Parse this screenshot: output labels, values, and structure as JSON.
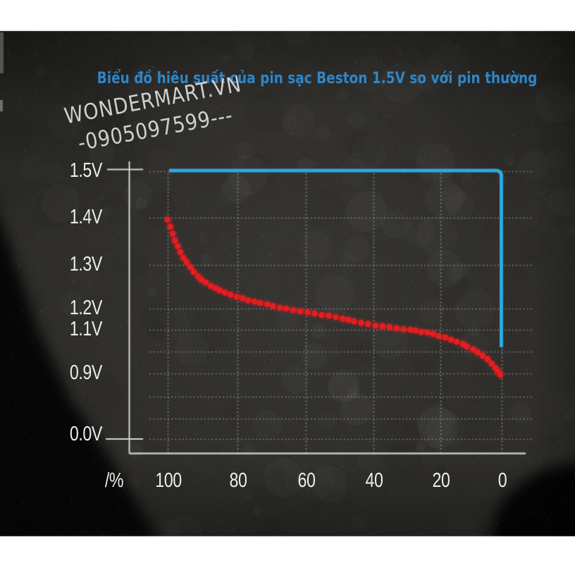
{
  "title": {
    "text": "Biểu đồ hiêu suất của pin sạc Beston 1.5V so với pin thường",
    "color": "#2e86c8"
  },
  "watermark": {
    "line1": "WONDERMART.VN",
    "line2": "-0905097599---",
    "color": "#dcdcdc"
  },
  "chart_data": {
    "type": "line",
    "title": "Biểu đồ hiêu suất của pin sạc Beston 1.5V so với pin thường",
    "background": "dark-textured-card",
    "grid": true,
    "x_axis": {
      "label": "/%",
      "ticks": [
        "100",
        "80",
        "60",
        "40",
        "20",
        "0"
      ],
      "reversed": true
    },
    "y_axis": {
      "unit": "V",
      "scale": "non-linear",
      "ticks": [
        {
          "label": "1.5V",
          "v": 1.5
        },
        {
          "label": "1.4V",
          "v": 1.4
        },
        {
          "label": "1.3V",
          "v": 1.3
        },
        {
          "label": "1.2V",
          "v": 1.2
        },
        {
          "label": "1.1V",
          "v": 1.1
        },
        {
          "label": "0.9V",
          "v": 0.9
        },
        {
          "label": "0.0V",
          "v": 0.0
        }
      ]
    },
    "series": [
      {
        "id": "blue_solid_line",
        "color": "#2baae2",
        "style": "solid",
        "points": [
          [
            100,
            1.5
          ],
          [
            0,
            1.5
          ],
          [
            0,
            1.02
          ]
        ]
      },
      {
        "id": "red_dotted_curve",
        "color": "#e41e20",
        "style": "dotted",
        "points": [
          [
            100,
            1.396
          ],
          [
            99.2,
            1.381
          ],
          [
            98.5,
            1.366
          ],
          [
            97.9,
            1.352
          ],
          [
            97,
            1.34
          ],
          [
            96.2,
            1.327
          ],
          [
            95.3,
            1.315
          ],
          [
            94.3,
            1.306
          ],
          [
            93.2,
            1.295
          ],
          [
            92.2,
            1.284
          ],
          [
            90.9,
            1.274
          ],
          [
            89.9,
            1.266
          ],
          [
            88.6,
            1.26
          ],
          [
            87.1,
            1.252
          ],
          [
            85.6,
            1.247
          ],
          [
            84.4,
            1.242
          ],
          [
            82.9,
            1.237
          ],
          [
            81.2,
            1.232
          ],
          [
            79.3,
            1.227
          ],
          [
            77.6,
            1.224
          ],
          [
            75.9,
            1.219
          ],
          [
            74,
            1.216
          ],
          [
            72.3,
            1.213
          ],
          [
            70.2,
            1.21
          ],
          [
            68.5,
            1.206
          ],
          [
            66.4,
            1.202
          ],
          [
            64.5,
            1.2
          ],
          [
            62.4,
            1.193
          ],
          [
            60.3,
            1.187
          ],
          [
            58.1,
            1.183
          ],
          [
            56,
            1.177
          ],
          [
            53.9,
            1.17
          ],
          [
            51.8,
            1.167
          ],
          [
            49.7,
            1.16
          ],
          [
            47.6,
            1.153
          ],
          [
            45.9,
            1.147
          ],
          [
            44.2,
            1.14
          ],
          [
            42.1,
            1.133
          ],
          [
            40,
            1.127
          ],
          [
            37.8,
            1.12
          ],
          [
            35.7,
            1.117
          ],
          [
            33.6,
            1.113
          ],
          [
            31.5,
            1.107
          ],
          [
            29.4,
            1.103
          ],
          [
            27.3,
            1.1
          ],
          [
            25.8,
            1.097
          ],
          [
            24.1,
            1.09
          ],
          [
            22.2,
            1.087
          ],
          [
            20.5,
            1.081
          ],
          [
            18.8,
            1.071
          ],
          [
            16.9,
            1.065
          ],
          [
            15.2,
            1.055
          ],
          [
            13.5,
            1.045
          ],
          [
            11.6,
            1.035
          ],
          [
            10.4,
            1.023
          ],
          [
            8.5,
            1.01
          ],
          [
            7.2,
            0.997
          ],
          [
            5.7,
            0.981
          ],
          [
            4.2,
            0.965
          ],
          [
            3,
            0.945
          ],
          [
            1.9,
            0.926
          ],
          [
            1.1,
            0.91
          ],
          [
            0.4,
            0.894
          ]
        ]
      }
    ]
  }
}
